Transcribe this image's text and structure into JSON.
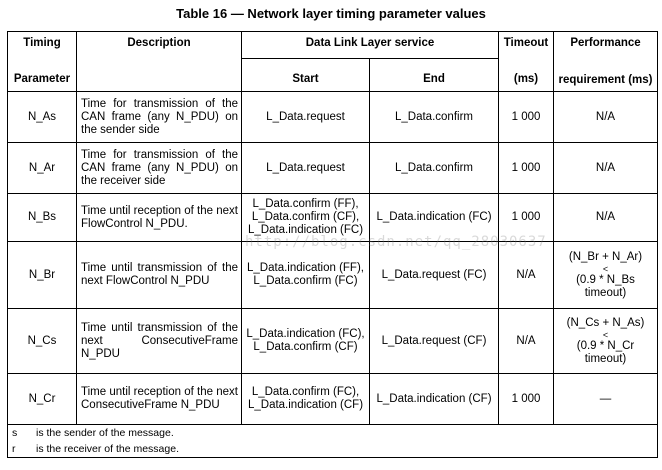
{
  "title": "Table 16 — Network layer timing parameter values",
  "headers": {
    "timing_line1": "Timing",
    "timing_line2": "Parameter",
    "description": "Description",
    "dll_service": "Data Link Layer service",
    "start": "Start",
    "end": "End",
    "timeout_line1": "Timeout",
    "timeout_line2": "(ms)",
    "perf_line1": "Performance",
    "perf_line2": "requirement (ms)"
  },
  "rows": [
    {
      "param": "N_As",
      "description": "Time for transmission of the CAN frame (any N_PDU) on the sender side",
      "start": [
        "L_Data.request"
      ],
      "end": "L_Data.confirm",
      "timeout": "1 000",
      "performance": [
        "N/A"
      ]
    },
    {
      "param": "N_Ar",
      "description": "Time for transmission of the CAN frame (any N_PDU) on the receiver side",
      "start": [
        "L_Data.request"
      ],
      "end": "L_Data.confirm",
      "timeout": "1 000",
      "performance": [
        "N/A"
      ]
    },
    {
      "param": "N_Bs",
      "description": "Time until reception of the next FlowControl N_PDU.",
      "start": [
        "L_Data.confirm (FF),",
        "L_Data.confirm (CF),",
        "L_Data.indication (FC)"
      ],
      "end": "L_Data.indication (FC)",
      "timeout": "1 000",
      "performance": [
        "N/A"
      ]
    },
    {
      "param": "N_Br",
      "description": "Time until transmission of the next FlowControl N_PDU",
      "start": [
        "L_Data.indication (FF),",
        "L_Data.confirm (FC)"
      ],
      "end": "L_Data.request (FC)",
      "timeout": "N/A",
      "performance": [
        "(N_Br + N_Ar)",
        "<",
        "(0.9 * N_Bs",
        "timeout)"
      ]
    },
    {
      "param": "N_Cs",
      "description": "Time until transmission of the next ConsecutiveFrame N_PDU",
      "start": [
        "L_Data.indication (FC),",
        "L_Data.confirm (CF)"
      ],
      "end": "L_Data.request (CF)",
      "timeout": "N/A",
      "performance": [
        "(N_Cs + N_As)",
        "<",
        "(0.9 * N_Cr",
        "timeout)"
      ]
    },
    {
      "param": "N_Cr",
      "description": "Time until reception of the next ConsecutiveFrame N_PDU",
      "start": [
        "L_Data.confirm (FC),",
        "L_Data.indication (CF)"
      ],
      "end": "L_Data.indication (CF)",
      "timeout": "1 000",
      "performance": [
        "—"
      ]
    }
  ],
  "footnotes": [
    {
      "key": "s",
      "text": "is the sender of the message."
    },
    {
      "key": "r",
      "text": "is the receiver of the message."
    }
  ],
  "watermark": "http://blog.csdn.net/qq_28030637"
}
